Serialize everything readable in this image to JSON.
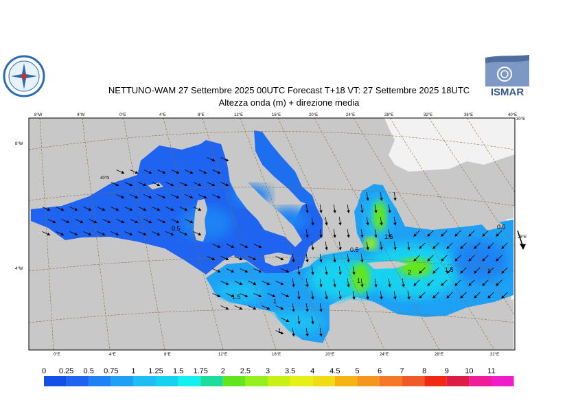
{
  "header": {
    "title_line1": "NETTUNO-WAM  27 Settembre 2025 00UTC Forecast T+18 VT: 27 Settembre 2025 18UTC",
    "title_line2": "Altezza onda (m) + direzione media"
  },
  "logos": {
    "left_logo": "aeronautica-meteo-emblem",
    "right_logo_text": "ISMAR"
  },
  "map": {
    "top_longitude_ticks": [
      "8°W",
      "4°W",
      "0°E",
      "4°E",
      "8°E",
      "12°E",
      "16°E",
      "20°E",
      "24°E",
      "28°E",
      "32°E",
      "36°E",
      "40°E"
    ],
    "bottom_longitude_ticks": [
      "0°E",
      "4°E",
      "8°E",
      "12°E",
      "16°E",
      "20°E",
      "24°E",
      "28°E",
      "32°E"
    ],
    "left_latitude_ticks": [
      "8°W",
      "4°W"
    ],
    "right_latitude_ticks": [
      "30°E",
      "28°E"
    ],
    "inner_label": "40°N",
    "contour_labels": [
      "0.5",
      "0.5",
      "0.5",
      "1.5",
      "1.5",
      "1.5",
      "1",
      "1",
      "1",
      "2",
      "1"
    ],
    "colors": {
      "land": "#c8c8c8",
      "other_land": "#f2f2f2",
      "sea_base": "#1e64f0",
      "graticule": "#8b6b3a"
    }
  },
  "colorbar": {
    "labels": [
      "0",
      "0.25",
      "0.5",
      "0.75",
      "1",
      "1.25",
      "1.5",
      "1.75",
      "2",
      "2.5",
      "3",
      "3.5",
      "4",
      "4.5",
      "5",
      "6",
      "7",
      "8",
      "9",
      "10",
      "11"
    ],
    "colors": [
      "#1450e6",
      "#1e64f0",
      "#1e82f5",
      "#1ea0f5",
      "#1ebef5",
      "#14d2f0",
      "#14f0f0",
      "#1edc9b",
      "#64e61e",
      "#96f01e",
      "#c8f014",
      "#e6f014",
      "#f0dc14",
      "#f5b414",
      "#f5961e",
      "#f57828",
      "#f05a28",
      "#f02814",
      "#dc1e46",
      "#f01e96",
      "#f01ec8"
    ]
  }
}
